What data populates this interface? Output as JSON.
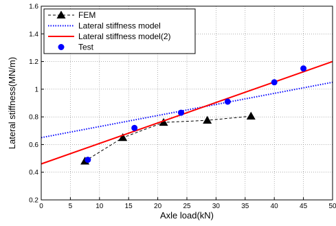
{
  "chart_data": {
    "type": "line",
    "xlabel": "Axle load(kN)",
    "ylabel": "Lateral stiffness(MN/m)",
    "xlim": [
      0,
      50
    ],
    "ylim": [
      0.2,
      1.6
    ],
    "xticks": [
      "0",
      "5",
      "10",
      "15",
      "20",
      "25",
      "30",
      "35",
      "40",
      "45",
      "50"
    ],
    "yticks": [
      "0.2",
      "0.4",
      "0.6",
      "0.8",
      "1",
      "1.2",
      "1.4",
      "1.6"
    ],
    "grid": true,
    "legend_position": "top-left",
    "series": [
      {
        "name": "FEM",
        "style": "dashed-triangles",
        "color": "#000000",
        "x": [
          7.5,
          14,
          21,
          28.5,
          36
        ],
        "y": [
          0.48,
          0.65,
          0.76,
          0.775,
          0.805
        ]
      },
      {
        "name": "Lateral stiffness model",
        "style": "dotted-line",
        "color": "#0000ff",
        "x": [
          0,
          50
        ],
        "y": [
          0.65,
          1.05
        ]
      },
      {
        "name": "Lateral stiffness model(2)",
        "style": "solid-line",
        "color": "#ff0000",
        "x": [
          0,
          50
        ],
        "y": [
          0.46,
          1.2
        ]
      },
      {
        "name": "Test",
        "style": "circles",
        "color": "#0000ff",
        "x": [
          8,
          16,
          24,
          32,
          40,
          45
        ],
        "y": [
          0.49,
          0.72,
          0.83,
          0.91,
          1.05,
          1.15
        ]
      }
    ]
  }
}
